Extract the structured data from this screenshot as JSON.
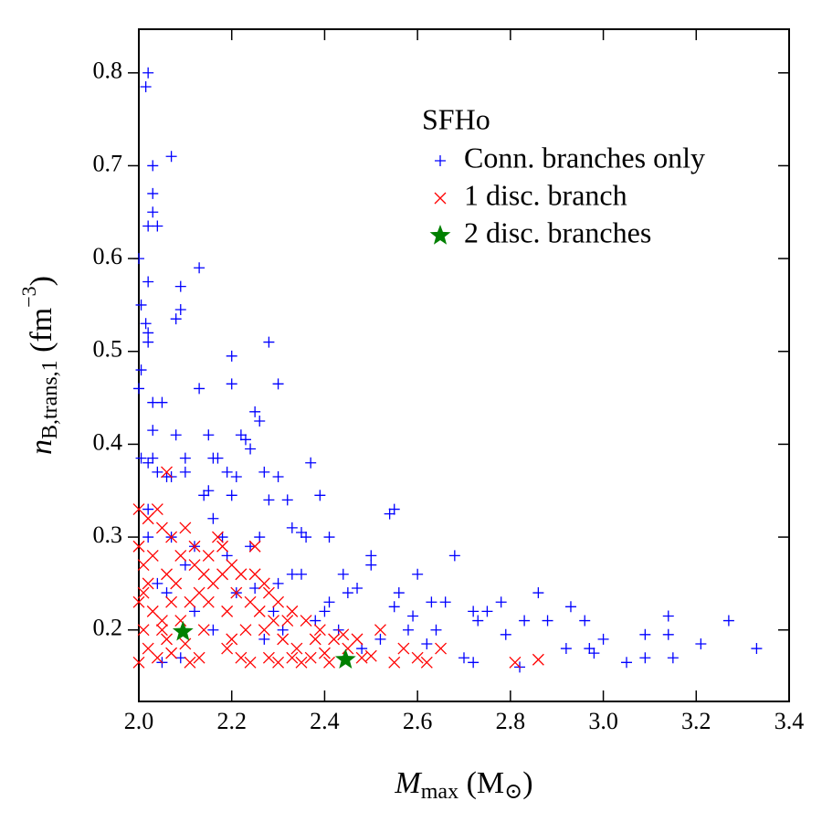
{
  "chart_data": {
    "type": "scatter",
    "xlabel": [
      "M",
      "max",
      " (M",
      "⊙",
      ")"
    ],
    "ylabel": [
      "n",
      "B,trans,1",
      " (fm",
      "−3",
      ")"
    ],
    "xlim": [
      2.0,
      3.4
    ],
    "ylim": [
      0.123,
      0.847
    ],
    "xticks": [
      {
        "value": 2.0,
        "label": "2.0"
      },
      2.2,
      2.4,
      2.6,
      2.8,
      {
        "value": 3.0,
        "label": "3.0"
      },
      3.2,
      3.4
    ],
    "yticks": [
      0.2,
      0.3,
      0.4,
      0.5,
      0.6,
      0.7,
      0.8
    ],
    "legend_title": "SFHo",
    "legend": "upper right",
    "series": [
      {
        "name": "Conn. branches only",
        "color": "#0000ff",
        "marker": "plus",
        "x": [
          2.02,
          2.015,
          2.03,
          2.07,
          2.03,
          2.03,
          2.02,
          2.04,
          2.0,
          2.02,
          2.13,
          2.09,
          2.09,
          2.08,
          2.005,
          2.015,
          2.02,
          2.02,
          2.005,
          2.0,
          2.2,
          2.28,
          2.3,
          2.2,
          2.13,
          2.03,
          2.05,
          2.03,
          2.08,
          2.1,
          2.15,
          2.22,
          2.23,
          2.25,
          2.26,
          2.24,
          2.16,
          2.17,
          2.005,
          2.02,
          2.03,
          2.04,
          2.06,
          2.07,
          2.1,
          2.19,
          2.21,
          2.27,
          2.3,
          2.37,
          2.15,
          2.14,
          2.2,
          2.28,
          2.32,
          2.39,
          2.33,
          2.35,
          2.41,
          2.36,
          2.55,
          2.54,
          2.5,
          2.5,
          2.6,
          2.68,
          2.56,
          2.45,
          2.47,
          2.55,
          2.63,
          2.66,
          2.72,
          2.75,
          2.78,
          2.86,
          2.93,
          2.88,
          2.96,
          3.0,
          3.05,
          3.09,
          3.09,
          3.14,
          3.14,
          3.15,
          3.21,
          3.27,
          3.33,
          2.97,
          2.98,
          2.82,
          2.79,
          2.72,
          2.7,
          2.62,
          2.58,
          2.52,
          2.48,
          2.43,
          2.4,
          2.38,
          2.35,
          2.33,
          2.3,
          2.25,
          2.21,
          2.18,
          2.16,
          2.12,
          2.1,
          2.06,
          2.26,
          2.24,
          2.19,
          2.07,
          2.02,
          2.02,
          2.04,
          2.64,
          2.59,
          2.92,
          2.83,
          2.73,
          2.44,
          2.41,
          2.31,
          2.29,
          2.27,
          2.16,
          2.12,
          2.05,
          2.09
        ],
        "values": [
          0.8,
          0.785,
          0.7,
          0.71,
          0.67,
          0.65,
          0.635,
          0.635,
          0.6,
          0.575,
          0.59,
          0.57,
          0.545,
          0.535,
          0.55,
          0.53,
          0.52,
          0.51,
          0.48,
          0.46,
          0.495,
          0.51,
          0.465,
          0.465,
          0.46,
          0.445,
          0.445,
          0.415,
          0.41,
          0.385,
          0.41,
          0.41,
          0.405,
          0.435,
          0.425,
          0.395,
          0.385,
          0.385,
          0.385,
          0.38,
          0.385,
          0.37,
          0.365,
          0.365,
          0.37,
          0.37,
          0.365,
          0.37,
          0.365,
          0.38,
          0.35,
          0.345,
          0.345,
          0.34,
          0.34,
          0.345,
          0.31,
          0.305,
          0.3,
          0.3,
          0.33,
          0.325,
          0.28,
          0.27,
          0.26,
          0.28,
          0.24,
          0.24,
          0.245,
          0.225,
          0.23,
          0.23,
          0.22,
          0.22,
          0.23,
          0.24,
          0.225,
          0.21,
          0.21,
          0.19,
          0.165,
          0.195,
          0.17,
          0.215,
          0.195,
          0.17,
          0.185,
          0.21,
          0.18,
          0.18,
          0.175,
          0.16,
          0.195,
          0.165,
          0.17,
          0.185,
          0.2,
          0.19,
          0.18,
          0.2,
          0.22,
          0.21,
          0.26,
          0.26,
          0.25,
          0.245,
          0.24,
          0.3,
          0.32,
          0.29,
          0.27,
          0.24,
          0.3,
          0.29,
          0.28,
          0.3,
          0.33,
          0.3,
          0.25,
          0.2,
          0.215,
          0.18,
          0.21,
          0.21,
          0.26,
          0.23,
          0.2,
          0.22,
          0.19,
          0.2,
          0.22,
          0.165,
          0.17
        ]
      },
      {
        "name": "1 disc. branch",
        "color": "#ff0000",
        "marker": "cross",
        "x": [
          2.0,
          2.02,
          2.04,
          2.05,
          2.07,
          2.1,
          2.12,
          2.15,
          2.18,
          2.2,
          2.22,
          2.25,
          2.28,
          2.3,
          2.33,
          2.36,
          2.39,
          2.42,
          2.45,
          2.48,
          2.5,
          2.55,
          2.6,
          2.65,
          2.81,
          2.86,
          2.0,
          2.01,
          2.02,
          2.0,
          2.03,
          2.01,
          2.02,
          2.0,
          2.04,
          2.06,
          2.05,
          2.07,
          2.06,
          2.08,
          2.09,
          2.1,
          2.11,
          2.13,
          2.14,
          2.15,
          2.16,
          2.13,
          2.12,
          2.18,
          2.19,
          2.2,
          2.22,
          2.24,
          2.23,
          2.21,
          2.26,
          2.27,
          2.28,
          2.3,
          2.31,
          2.32,
          2.34,
          2.35,
          2.37,
          2.38,
          2.4,
          2.41,
          2.44,
          2.47,
          2.52,
          2.57,
          2.62,
          2.25,
          2.17,
          2.09,
          2.03,
          2.01,
          2.05,
          2.11,
          2.19,
          2.27,
          2.33,
          2.29,
          2.07,
          2.24,
          2.14,
          2.06
        ],
        "values": [
          0.33,
          0.32,
          0.33,
          0.31,
          0.3,
          0.31,
          0.29,
          0.28,
          0.29,
          0.27,
          0.26,
          0.26,
          0.24,
          0.23,
          0.22,
          0.21,
          0.2,
          0.19,
          0.18,
          0.17,
          0.172,
          0.165,
          0.17,
          0.18,
          0.165,
          0.168,
          0.29,
          0.27,
          0.25,
          0.23,
          0.22,
          0.2,
          0.18,
          0.165,
          0.17,
          0.19,
          0.21,
          0.23,
          0.26,
          0.25,
          0.21,
          0.185,
          0.165,
          0.17,
          0.2,
          0.23,
          0.25,
          0.24,
          0.27,
          0.26,
          0.22,
          0.19,
          0.17,
          0.165,
          0.2,
          0.24,
          0.22,
          0.2,
          0.17,
          0.165,
          0.19,
          0.21,
          0.18,
          0.165,
          0.17,
          0.19,
          0.175,
          0.165,
          0.195,
          0.19,
          0.2,
          0.18,
          0.165,
          0.29,
          0.3,
          0.28,
          0.28,
          0.24,
          0.2,
          0.23,
          0.18,
          0.25,
          0.17,
          0.21,
          0.175,
          0.23,
          0.26,
          0.37
        ]
      },
      {
        "name": "2 disc. branches",
        "color": "#008000",
        "marker": "star",
        "x": [
          2.095,
          2.445
        ],
        "values": [
          0.198,
          0.168
        ]
      }
    ]
  }
}
